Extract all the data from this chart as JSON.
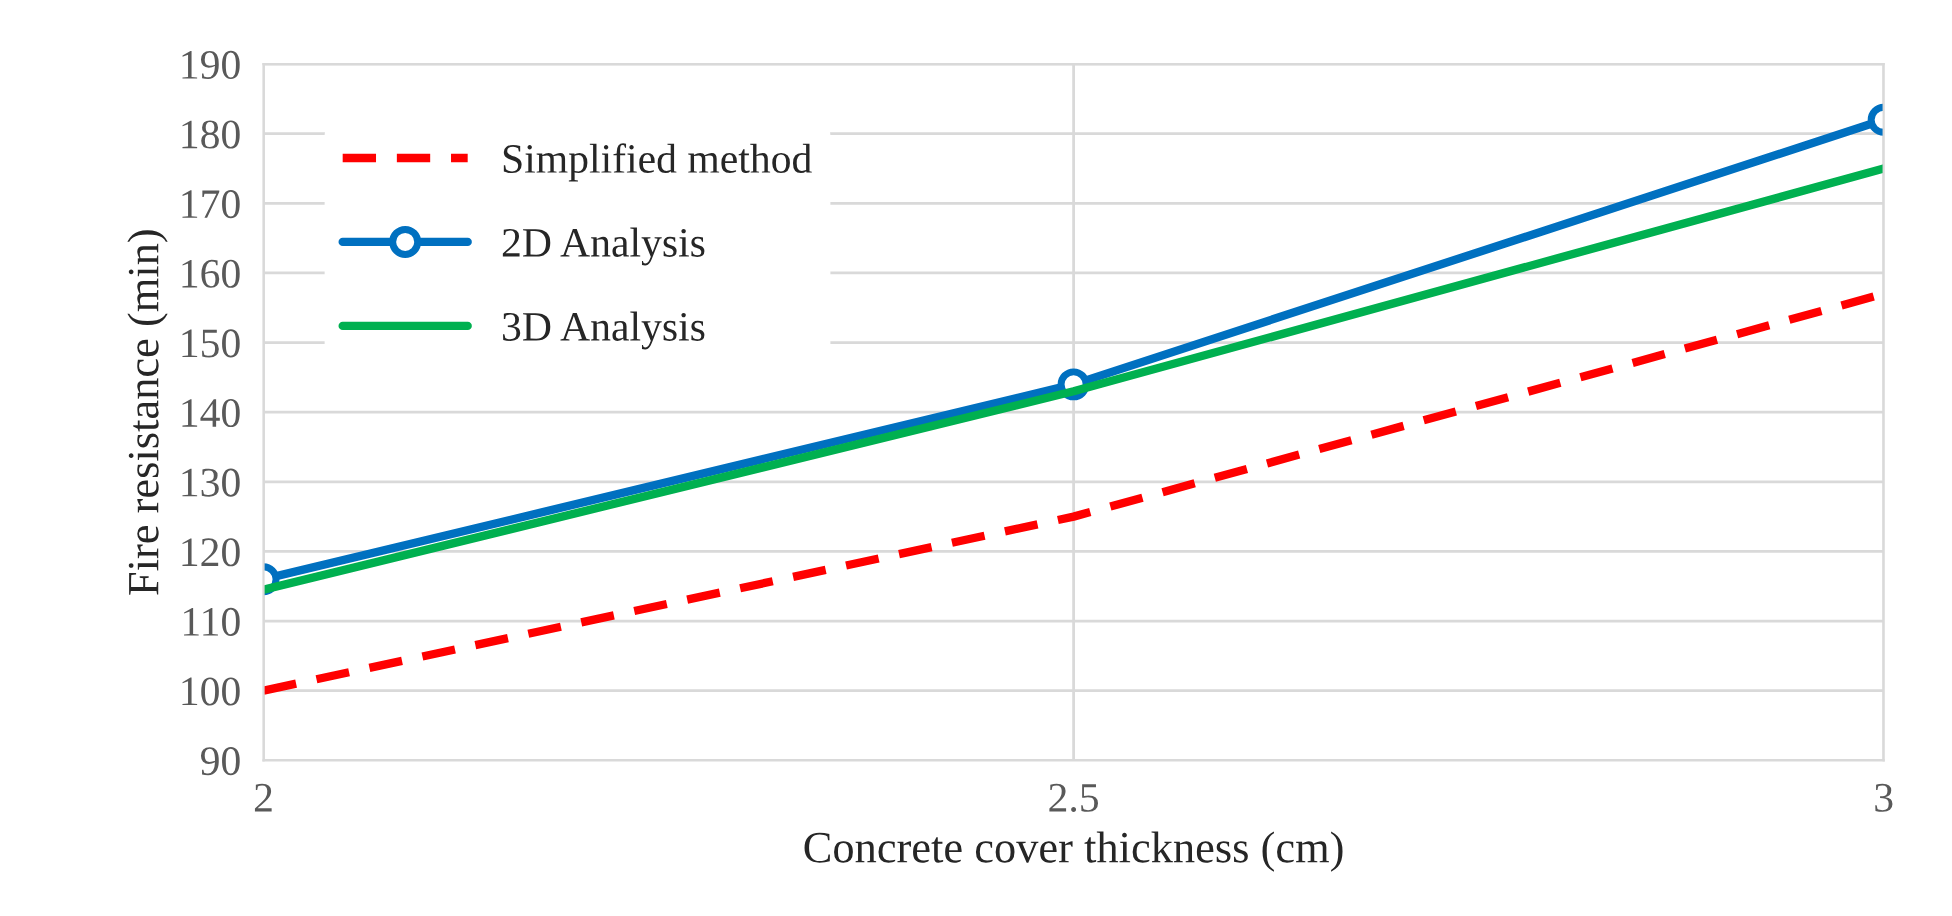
{
  "chart_data": {
    "type": "line",
    "xlabel": "Concrete cover thickness (cm)",
    "ylabel": "Fire resistance (min)",
    "x": [
      2,
      2.5,
      3
    ],
    "series": [
      {
        "name": "Simplified method",
        "color": "#ff0000",
        "values": [
          100,
          125,
          157
        ],
        "line_style": "dashed",
        "marker": "none"
      },
      {
        "name": "2D Analysis",
        "color": "#0070c0",
        "values": [
          116,
          144,
          182
        ],
        "line_style": "solid",
        "marker": "circle"
      },
      {
        "name": "3D Analysis",
        "color": "#00b050",
        "values": [
          114.5,
          143,
          175
        ],
        "line_style": "solid",
        "marker": "none"
      }
    ],
    "xlim": [
      2,
      3
    ],
    "xticks": [
      2,
      2.5,
      3
    ],
    "ylim": [
      90,
      190
    ],
    "yticks": [
      90,
      100,
      110,
      120,
      130,
      140,
      150,
      160,
      170,
      180,
      190
    ],
    "grid": true,
    "legend": "top left"
  }
}
